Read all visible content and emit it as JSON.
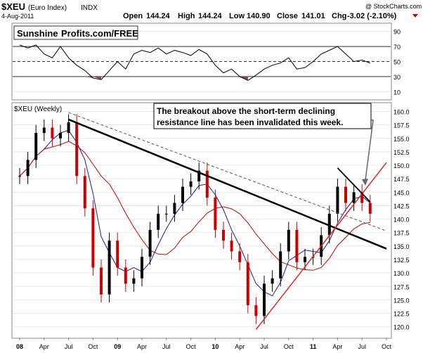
{
  "header": {
    "symbol": "$XEU",
    "name": "(Euro Index)",
    "exchange": "INDX",
    "date": "4-Aug-2011",
    "open_label": "Open",
    "open": "144.24",
    "high_label": "High",
    "high": "144.24",
    "low_label": "Low",
    "low": "140.90",
    "close_label": "Close",
    "close": "141.01",
    "chg_label": "Chg",
    "chg": "-3.02 (-2.10%)",
    "copyright": "@ StockCharts.com"
  },
  "logo": {
    "part1": "Sunshine",
    "part2": "Profits.com/FREE"
  },
  "annotation": {
    "line1": "The breakout above the short-term declining",
    "line2": "resistance line has been invalidated this week."
  },
  "colors": {
    "candle_up": "#000000",
    "candle_down": "#cc0000",
    "ma_short": "#cc0000",
    "ma_long": "#1a1a99",
    "rsi": "#000000",
    "rsi_oversold_fill": "#8a4a4a",
    "grid": "#e8e8e8"
  },
  "chart_data": [
    {
      "type": "line",
      "panel": "RSI",
      "ylim": [
        0,
        100
      ],
      "yticks": [
        10,
        30,
        50,
        70,
        90
      ],
      "reference_lines": [
        30,
        50,
        70
      ],
      "x": [
        "2008-01",
        "2008-02",
        "2008-03",
        "2008-04",
        "2008-05",
        "2008-06",
        "2008-07",
        "2008-08",
        "2008-09",
        "2008-10",
        "2008-11",
        "2008-12",
        "2009-01",
        "2009-02",
        "2009-03",
        "2009-04",
        "2009-05",
        "2009-06",
        "2009-07",
        "2009-08",
        "2009-09",
        "2009-10",
        "2009-11",
        "2009-12",
        "2010-01",
        "2010-02",
        "2010-03",
        "2010-04",
        "2010-05",
        "2010-06",
        "2010-07",
        "2010-08",
        "2010-09",
        "2010-10",
        "2010-11",
        "2010-12",
        "2011-01",
        "2011-02",
        "2011-03",
        "2011-04",
        "2011-05",
        "2011-06",
        "2011-07",
        "2011-08"
      ],
      "values": [
        72,
        68,
        72,
        60,
        55,
        70,
        55,
        45,
        38,
        28,
        26,
        38,
        50,
        40,
        60,
        65,
        62,
        68,
        60,
        65,
        62,
        58,
        66,
        60,
        45,
        35,
        40,
        30,
        25,
        32,
        40,
        45,
        48,
        55,
        40,
        42,
        50,
        60,
        65,
        70,
        60,
        50,
        52,
        48
      ]
    },
    {
      "type": "candlestick",
      "panel": "Price",
      "label": "$XEU (Weekly)",
      "ylim": [
        118,
        161.5
      ],
      "yticks": [
        120.0,
        122.5,
        125.0,
        127.5,
        130.0,
        132.5,
        135.0,
        137.5,
        140.0,
        142.5,
        145.0,
        147.5,
        150.0,
        152.5,
        155.0,
        157.5,
        160.0
      ],
      "xticks": [
        "08",
        "Apr",
        "Jul",
        "Oct",
        "09",
        "Apr",
        "Jul",
        "Oct",
        "10",
        "Apr",
        "Jul",
        "Oct",
        "11",
        "Apr",
        "Jul",
        "Oct"
      ],
      "x": [
        "2008-01",
        "2008-02",
        "2008-03",
        "2008-04",
        "2008-05",
        "2008-06",
        "2008-07",
        "2008-08",
        "2008-09",
        "2008-10",
        "2008-11",
        "2008-12",
        "2009-01",
        "2009-02",
        "2009-03",
        "2009-04",
        "2009-05",
        "2009-06",
        "2009-07",
        "2009-08",
        "2009-09",
        "2009-10",
        "2009-11",
        "2009-12",
        "2010-01",
        "2010-02",
        "2010-03",
        "2010-04",
        "2010-05",
        "2010-06",
        "2010-07",
        "2010-08",
        "2010-09",
        "2010-10",
        "2010-11",
        "2010-12",
        "2011-01",
        "2011-02",
        "2011-03",
        "2011-04",
        "2011-05",
        "2011-06",
        "2011-07",
        "2011-08"
      ],
      "close": [
        148,
        151,
        156,
        157,
        155,
        156,
        158,
        148,
        142,
        131,
        126,
        136,
        131,
        128,
        129,
        133,
        138,
        141,
        141,
        143,
        146,
        147,
        149,
        144,
        138,
        136,
        134,
        132,
        124,
        122,
        128,
        129,
        134,
        138,
        132,
        133,
        133,
        137,
        141,
        146,
        143,
        145,
        143,
        141
      ],
      "ma_short": [
        null,
        null,
        null,
        null,
        null,
        null,
        null,
        null,
        null,
        null,
        null,
        null,
        null,
        null,
        null,
        null,
        null,
        null,
        null,
        null,
        null,
        null,
        null,
        null,
        null,
        null,
        null,
        null,
        null,
        null,
        null,
        null,
        null,
        null,
        null,
        null,
        null,
        null,
        null,
        null,
        null,
        null,
        null,
        null
      ],
      "trendlines": [
        {
          "name": "long-term declining resistance (solid)",
          "points": [
            [
              "2008-07",
              158.5
            ],
            [
              "2011-10",
              134.5
            ]
          ]
        },
        {
          "name": "long-term declining resistance (dashed)",
          "points": [
            [
              "2008-07",
              159.8
            ],
            [
              "2011-10",
              137.8
            ]
          ]
        },
        {
          "name": "rising support (red)",
          "points": [
            [
              "2010-06",
              119.5
            ],
            [
              "2011-10",
              150.5
            ]
          ]
        },
        {
          "name": "short-term declining resistance",
          "points": [
            [
              "2011-04",
              149.5
            ],
            [
              "2011-08",
              143.2
            ]
          ]
        }
      ]
    }
  ]
}
